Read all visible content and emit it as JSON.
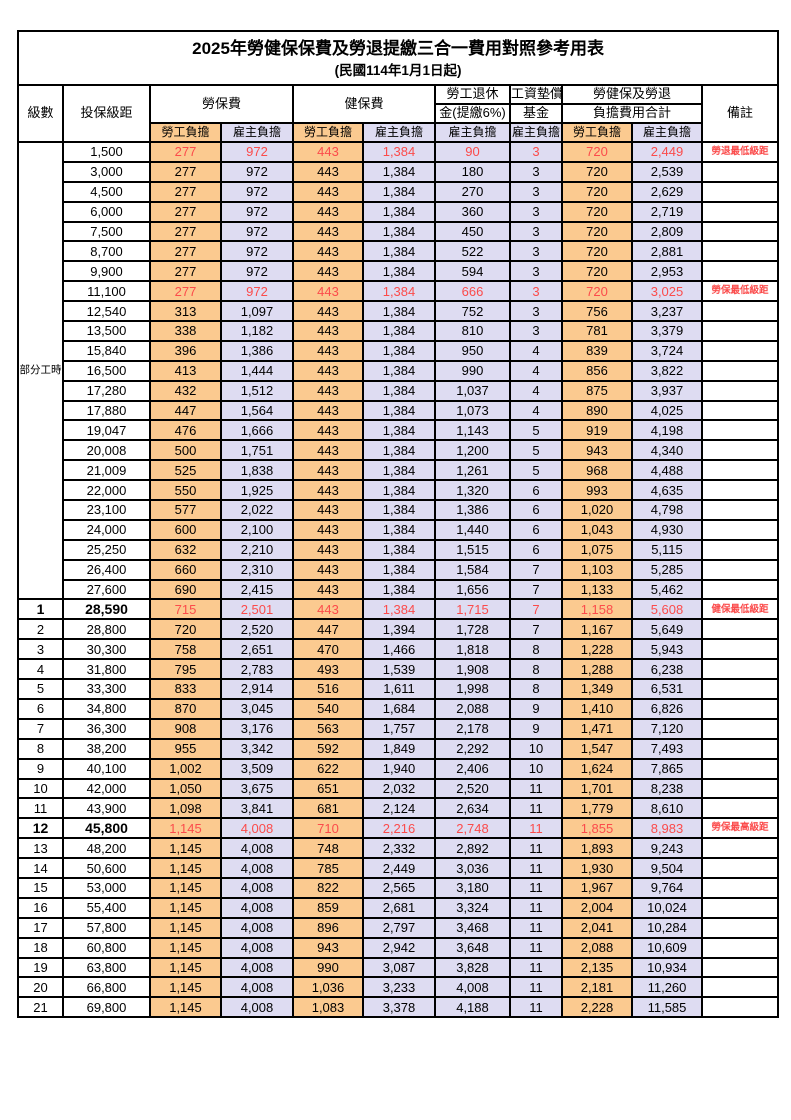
{
  "title": "2025年勞健保保費及勞退提繳三合一費用對照參考用表",
  "subtitle": "(民國114年1月1日起)",
  "colors": {
    "employee_column_bg": "#FBCA90",
    "employer_column_bg": "#DEDCF2",
    "highlight_red": "#FB4B4B",
    "border": "#000000"
  },
  "header": {
    "level": "級數",
    "bracket": "投保級距",
    "labor_fee": "勞保費",
    "health_fee": "健保費",
    "pension_line1": "勞工退休",
    "pension_line2": "金(提繳6%)",
    "wage_fund_line1": "工資墊償",
    "wage_fund_line2": "基金",
    "total_line1": "勞健保及勞退",
    "total_line2": "負擔費用合計",
    "note": "備註",
    "employee": "勞工負擔",
    "employer": "雇主負擔"
  },
  "partial_time_label": "部分工時",
  "partial_time_rowspan": 23,
  "rows": [
    {
      "level": "",
      "bracket": "1,500",
      "values": [
        "277",
        "972",
        "443",
        "1,384",
        "90",
        "3",
        "720",
        "2,449"
      ],
      "note": "勞退最低級距",
      "red": true,
      "bold": false
    },
    {
      "level": "",
      "bracket": "3,000",
      "values": [
        "277",
        "972",
        "443",
        "1,384",
        "180",
        "3",
        "720",
        "2,539"
      ],
      "note": "",
      "red": false,
      "bold": false
    },
    {
      "level": "",
      "bracket": "4,500",
      "values": [
        "277",
        "972",
        "443",
        "1,384",
        "270",
        "3",
        "720",
        "2,629"
      ],
      "note": "",
      "red": false,
      "bold": false
    },
    {
      "level": "",
      "bracket": "6,000",
      "values": [
        "277",
        "972",
        "443",
        "1,384",
        "360",
        "3",
        "720",
        "2,719"
      ],
      "note": "",
      "red": false,
      "bold": false
    },
    {
      "level": "",
      "bracket": "7,500",
      "values": [
        "277",
        "972",
        "443",
        "1,384",
        "450",
        "3",
        "720",
        "2,809"
      ],
      "note": "",
      "red": false,
      "bold": false
    },
    {
      "level": "",
      "bracket": "8,700",
      "values": [
        "277",
        "972",
        "443",
        "1,384",
        "522",
        "3",
        "720",
        "2,881"
      ],
      "note": "",
      "red": false,
      "bold": false
    },
    {
      "level": "",
      "bracket": "9,900",
      "values": [
        "277",
        "972",
        "443",
        "1,384",
        "594",
        "3",
        "720",
        "2,953"
      ],
      "note": "",
      "red": false,
      "bold": false
    },
    {
      "level": "",
      "bracket": "11,100",
      "values": [
        "277",
        "972",
        "443",
        "1,384",
        "666",
        "3",
        "720",
        "3,025"
      ],
      "note": "勞保最低級距",
      "red": true,
      "bold": false
    },
    {
      "level": "",
      "bracket": "12,540",
      "values": [
        "313",
        "1,097",
        "443",
        "1,384",
        "752",
        "3",
        "756",
        "3,237"
      ],
      "note": "",
      "red": false,
      "bold": false
    },
    {
      "level": "",
      "bracket": "13,500",
      "values": [
        "338",
        "1,182",
        "443",
        "1,384",
        "810",
        "3",
        "781",
        "3,379"
      ],
      "note": "",
      "red": false,
      "bold": false
    },
    {
      "level": "",
      "bracket": "15,840",
      "values": [
        "396",
        "1,386",
        "443",
        "1,384",
        "950",
        "4",
        "839",
        "3,724"
      ],
      "note": "",
      "red": false,
      "bold": false
    },
    {
      "level": "",
      "bracket": "16,500",
      "values": [
        "413",
        "1,444",
        "443",
        "1,384",
        "990",
        "4",
        "856",
        "3,822"
      ],
      "note": "",
      "red": false,
      "bold": false
    },
    {
      "level": "",
      "bracket": "17,280",
      "values": [
        "432",
        "1,512",
        "443",
        "1,384",
        "1,037",
        "4",
        "875",
        "3,937"
      ],
      "note": "",
      "red": false,
      "bold": false
    },
    {
      "level": "",
      "bracket": "17,880",
      "values": [
        "447",
        "1,564",
        "443",
        "1,384",
        "1,073",
        "4",
        "890",
        "4,025"
      ],
      "note": "",
      "red": false,
      "bold": false
    },
    {
      "level": "",
      "bracket": "19,047",
      "values": [
        "476",
        "1,666",
        "443",
        "1,384",
        "1,143",
        "5",
        "919",
        "4,198"
      ],
      "note": "",
      "red": false,
      "bold": false
    },
    {
      "level": "",
      "bracket": "20,008",
      "values": [
        "500",
        "1,751",
        "443",
        "1,384",
        "1,200",
        "5",
        "943",
        "4,340"
      ],
      "note": "",
      "red": false,
      "bold": false
    },
    {
      "level": "",
      "bracket": "21,009",
      "values": [
        "525",
        "1,838",
        "443",
        "1,384",
        "1,261",
        "5",
        "968",
        "4,488"
      ],
      "note": "",
      "red": false,
      "bold": false
    },
    {
      "level": "",
      "bracket": "22,000",
      "values": [
        "550",
        "1,925",
        "443",
        "1,384",
        "1,320",
        "6",
        "993",
        "4,635"
      ],
      "note": "",
      "red": false,
      "bold": false
    },
    {
      "level": "",
      "bracket": "23,100",
      "values": [
        "577",
        "2,022",
        "443",
        "1,384",
        "1,386",
        "6",
        "1,020",
        "4,798"
      ],
      "note": "",
      "red": false,
      "bold": false
    },
    {
      "level": "",
      "bracket": "24,000",
      "values": [
        "600",
        "2,100",
        "443",
        "1,384",
        "1,440",
        "6",
        "1,043",
        "4,930"
      ],
      "note": "",
      "red": false,
      "bold": false
    },
    {
      "level": "",
      "bracket": "25,250",
      "values": [
        "632",
        "2,210",
        "443",
        "1,384",
        "1,515",
        "6",
        "1,075",
        "5,115"
      ],
      "note": "",
      "red": false,
      "bold": false
    },
    {
      "level": "",
      "bracket": "26,400",
      "values": [
        "660",
        "2,310",
        "443",
        "1,384",
        "1,584",
        "7",
        "1,103",
        "5,285"
      ],
      "note": "",
      "red": false,
      "bold": false
    },
    {
      "level": "",
      "bracket": "27,600",
      "values": [
        "690",
        "2,415",
        "443",
        "1,384",
        "1,656",
        "7",
        "1,133",
        "5,462"
      ],
      "note": "",
      "red": false,
      "bold": false
    },
    {
      "level": "1",
      "bracket": "28,590",
      "values": [
        "715",
        "2,501",
        "443",
        "1,384",
        "1,715",
        "7",
        "1,158",
        "5,608"
      ],
      "note": "健保最低級距",
      "red": true,
      "bold": true
    },
    {
      "level": "2",
      "bracket": "28,800",
      "values": [
        "720",
        "2,520",
        "447",
        "1,394",
        "1,728",
        "7",
        "1,167",
        "5,649"
      ],
      "note": "",
      "red": false,
      "bold": false
    },
    {
      "level": "3",
      "bracket": "30,300",
      "values": [
        "758",
        "2,651",
        "470",
        "1,466",
        "1,818",
        "8",
        "1,228",
        "5,943"
      ],
      "note": "",
      "red": false,
      "bold": false
    },
    {
      "level": "4",
      "bracket": "31,800",
      "values": [
        "795",
        "2,783",
        "493",
        "1,539",
        "1,908",
        "8",
        "1,288",
        "6,238"
      ],
      "note": "",
      "red": false,
      "bold": false
    },
    {
      "level": "5",
      "bracket": "33,300",
      "values": [
        "833",
        "2,914",
        "516",
        "1,611",
        "1,998",
        "8",
        "1,349",
        "6,531"
      ],
      "note": "",
      "red": false,
      "bold": false
    },
    {
      "level": "6",
      "bracket": "34,800",
      "values": [
        "870",
        "3,045",
        "540",
        "1,684",
        "2,088",
        "9",
        "1,410",
        "6,826"
      ],
      "note": "",
      "red": false,
      "bold": false
    },
    {
      "level": "7",
      "bracket": "36,300",
      "values": [
        "908",
        "3,176",
        "563",
        "1,757",
        "2,178",
        "9",
        "1,471",
        "7,120"
      ],
      "note": "",
      "red": false,
      "bold": false
    },
    {
      "level": "8",
      "bracket": "38,200",
      "values": [
        "955",
        "3,342",
        "592",
        "1,849",
        "2,292",
        "10",
        "1,547",
        "7,493"
      ],
      "note": "",
      "red": false,
      "bold": false
    },
    {
      "level": "9",
      "bracket": "40,100",
      "values": [
        "1,002",
        "3,509",
        "622",
        "1,940",
        "2,406",
        "10",
        "1,624",
        "7,865"
      ],
      "note": "",
      "red": false,
      "bold": false
    },
    {
      "level": "10",
      "bracket": "42,000",
      "values": [
        "1,050",
        "3,675",
        "651",
        "2,032",
        "2,520",
        "11",
        "1,701",
        "8,238"
      ],
      "note": "",
      "red": false,
      "bold": false
    },
    {
      "level": "11",
      "bracket": "43,900",
      "values": [
        "1,098",
        "3,841",
        "681",
        "2,124",
        "2,634",
        "11",
        "1,779",
        "8,610"
      ],
      "note": "",
      "red": false,
      "bold": false
    },
    {
      "level": "12",
      "bracket": "45,800",
      "values": [
        "1,145",
        "4,008",
        "710",
        "2,216",
        "2,748",
        "11",
        "1,855",
        "8,983"
      ],
      "note": "勞保最高級距",
      "red": true,
      "bold": true
    },
    {
      "level": "13",
      "bracket": "48,200",
      "values": [
        "1,145",
        "4,008",
        "748",
        "2,332",
        "2,892",
        "11",
        "1,893",
        "9,243"
      ],
      "note": "",
      "red": false,
      "bold": false
    },
    {
      "level": "14",
      "bracket": "50,600",
      "values": [
        "1,145",
        "4,008",
        "785",
        "2,449",
        "3,036",
        "11",
        "1,930",
        "9,504"
      ],
      "note": "",
      "red": false,
      "bold": false
    },
    {
      "level": "15",
      "bracket": "53,000",
      "values": [
        "1,145",
        "4,008",
        "822",
        "2,565",
        "3,180",
        "11",
        "1,967",
        "9,764"
      ],
      "note": "",
      "red": false,
      "bold": false
    },
    {
      "level": "16",
      "bracket": "55,400",
      "values": [
        "1,145",
        "4,008",
        "859",
        "2,681",
        "3,324",
        "11",
        "2,004",
        "10,024"
      ],
      "note": "",
      "red": false,
      "bold": false
    },
    {
      "level": "17",
      "bracket": "57,800",
      "values": [
        "1,145",
        "4,008",
        "896",
        "2,797",
        "3,468",
        "11",
        "2,041",
        "10,284"
      ],
      "note": "",
      "red": false,
      "bold": false
    },
    {
      "level": "18",
      "bracket": "60,800",
      "values": [
        "1,145",
        "4,008",
        "943",
        "2,942",
        "3,648",
        "11",
        "2,088",
        "10,609"
      ],
      "note": "",
      "red": false,
      "bold": false
    },
    {
      "level": "19",
      "bracket": "63,800",
      "values": [
        "1,145",
        "4,008",
        "990",
        "3,087",
        "3,828",
        "11",
        "2,135",
        "10,934"
      ],
      "note": "",
      "red": false,
      "bold": false
    },
    {
      "level": "20",
      "bracket": "66,800",
      "values": [
        "1,145",
        "4,008",
        "1,036",
        "3,233",
        "4,008",
        "11",
        "2,181",
        "11,260"
      ],
      "note": "",
      "red": false,
      "bold": false
    },
    {
      "level": "21",
      "bracket": "69,800",
      "values": [
        "1,145",
        "4,008",
        "1,083",
        "3,378",
        "4,188",
        "11",
        "2,228",
        "11,585"
      ],
      "note": "",
      "red": false,
      "bold": false
    }
  ]
}
